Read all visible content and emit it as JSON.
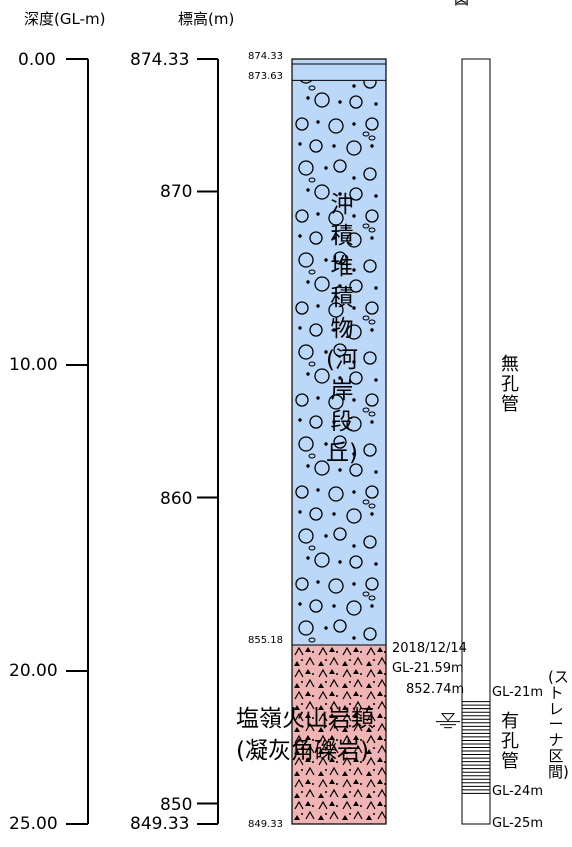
{
  "figure_mark": "図",
  "headers": {
    "depth": "深度(GL-m)",
    "elevation": "標高(m)"
  },
  "depth_ticks": [
    "0.00",
    "10.00",
    "20.00",
    "25.00"
  ],
  "elevation_ticks": [
    "874.33",
    "870",
    "860",
    "850",
    "849.33"
  ],
  "layer_boundaries": [
    "874.33",
    "873.63",
    "855.18",
    "849.33"
  ],
  "layers": [
    {
      "name": "沖積堆積物(河岸段丘)",
      "color": "#bcd8f8"
    },
    {
      "name": "塩嶺火山岩類",
      "subname": "(凝灰角礫岩)",
      "color": "#f0b4b4"
    }
  ],
  "water_level": {
    "date": "2018/12/14",
    "depth": "GL-21.59m",
    "elevation": "852.74m"
  },
  "casing": {
    "unperforated_label": "無孔管",
    "perforated_label": "有孔管",
    "strainer_label": "(ストレーナ区間)",
    "marks": [
      "GL-21m",
      "GL-24m",
      "GL-25m"
    ]
  }
}
